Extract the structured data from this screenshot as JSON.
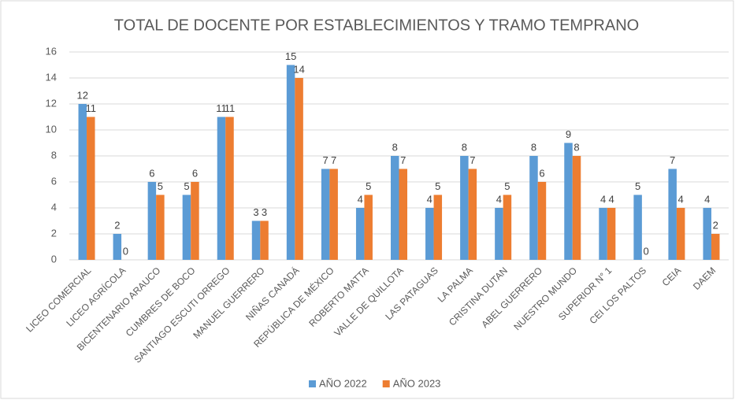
{
  "chart_data": {
    "type": "bar",
    "title": "TOTAL DE DOCENTE POR ESTABLECIMIENTOS Y TRAMO TEMPRANO",
    "categories": [
      "LICEO COMERCIAL",
      "LICEO AGRÍCOLA",
      "BICENTENARIO ARAUCO",
      "CUMBRES DE BOCO",
      "SANTIAGO ESCUTI ORREGO",
      "MANUEL GUERRERO",
      "NIÑAS CANADÁ",
      "REPÚBLICA DE MÉXICO",
      "ROBERTO MATTA",
      "VALLE DE QUILLOTA",
      "LAS PATAGUAS",
      "LA PALMA",
      "CRISTINA DUTAN",
      "ABEL GUERRERO",
      "NUESTRO MUNDO",
      "SUPERIOR N° 1",
      "CEI LOS PALTOS",
      "CEIA",
      "DAEM"
    ],
    "series": [
      {
        "name": "AÑO 2022",
        "color": "#5b9bd5",
        "values": [
          12,
          2,
          6,
          5,
          11,
          3,
          15,
          7,
          4,
          8,
          4,
          8,
          4,
          8,
          9,
          4,
          5,
          7,
          4
        ]
      },
      {
        "name": "AÑO 2023",
        "color": "#ed7d31",
        "values": [
          11,
          0,
          5,
          6,
          11,
          3,
          14,
          7,
          5,
          7,
          5,
          7,
          5,
          6,
          8,
          4,
          0,
          4,
          2
        ]
      }
    ],
    "ylim": [
      0,
      16
    ],
    "yticks": [
      0,
      2,
      4,
      6,
      8,
      10,
      12,
      14,
      16
    ],
    "grid": true,
    "legend": "bottom"
  }
}
